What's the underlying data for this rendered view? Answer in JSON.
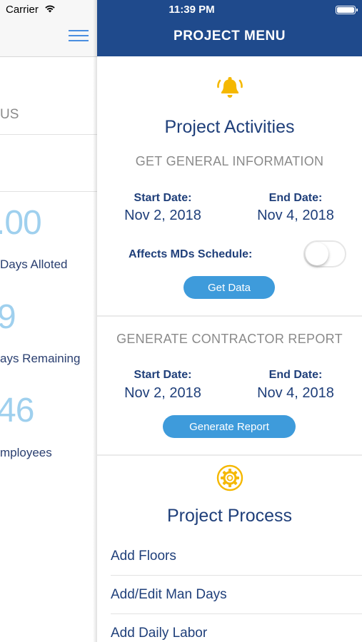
{
  "status_bar": {
    "carrier": "Carrier",
    "time": "11:39 PM",
    "icons": [
      "wifi-icon",
      "battery-icon"
    ]
  },
  "background_screen": {
    "status_fragment": "US",
    "stats": [
      {
        "value": ".00",
        "label": "Days Alloted"
      },
      {
        "value": "9",
        "label": "ays Remaining"
      },
      {
        "value": "46",
        "label": "mployees"
      }
    ],
    "icons": [
      "hamburger-icon"
    ]
  },
  "menu": {
    "title": "PROJECT MENU",
    "activities": {
      "icon": "bell-icon",
      "title": "Project Activities",
      "general_info": {
        "subtitle": "GET GENERAL INFORMATION",
        "start_label": "Start Date:",
        "start_value": "Nov 2, 2018",
        "end_label": "End Date:",
        "end_value": "Nov 4, 2018",
        "affects_label": "Affects MDs Schedule:",
        "affects_toggle_on": false,
        "button": "Get Data"
      },
      "contractor_report": {
        "subtitle": "GENERATE CONTRACTOR REPORT",
        "start_label": "Start Date:",
        "start_value": "Nov 2, 2018",
        "end_label": "End Date:",
        "end_value": "Nov 4, 2018",
        "button": "Generate Report"
      }
    },
    "process": {
      "icon": "gear-icon",
      "title": "Project Process",
      "items": [
        "Add Floors",
        "Add/Edit Man Days",
        "Add Daily Labor"
      ]
    }
  },
  "colors": {
    "header_blue": "#1f4a8c",
    "text_blue": "#1f3f7a",
    "button_blue": "#3e9bdb",
    "icon_gold": "#f5b800",
    "stat_light_blue": "#9fd0ee"
  }
}
